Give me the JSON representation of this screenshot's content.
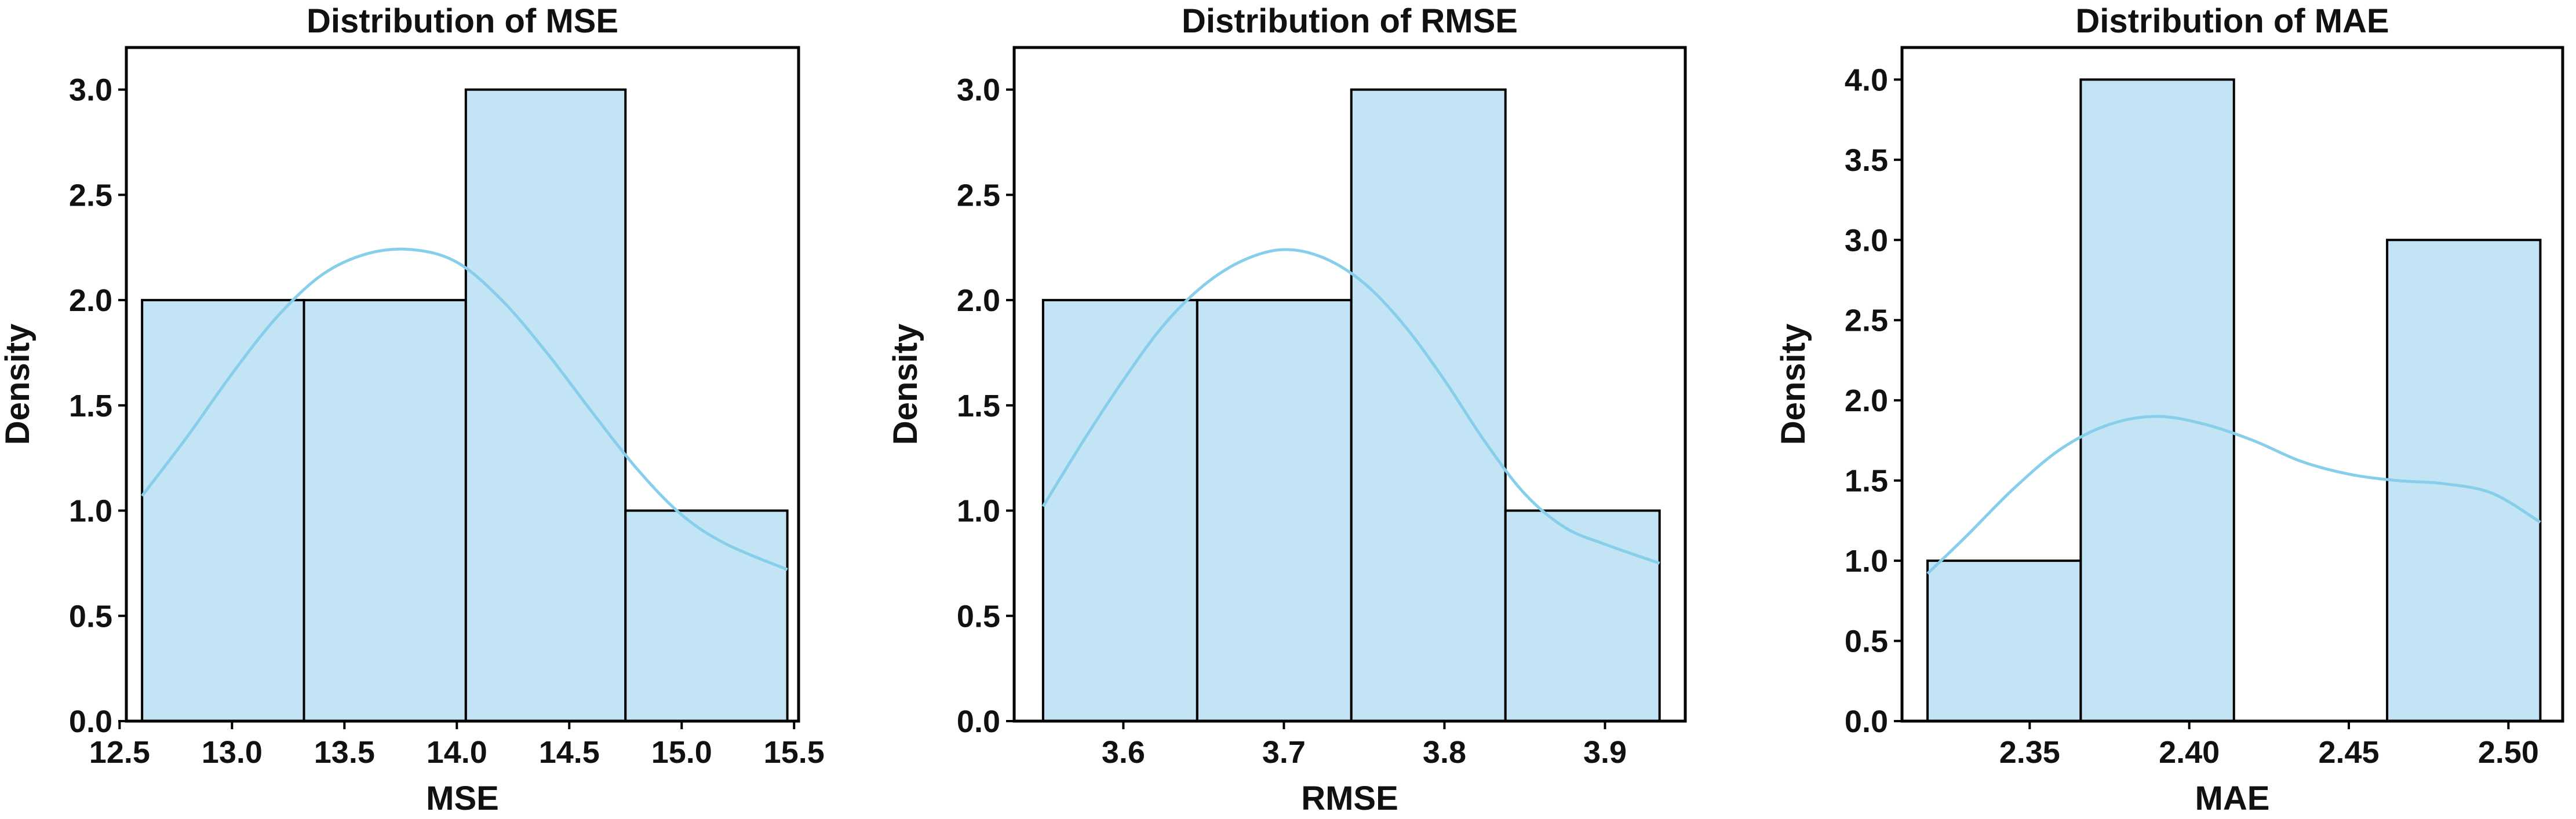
{
  "chart_data": [
    {
      "type": "histogram",
      "title": "Distribution of MSE",
      "xlabel": "MSE",
      "ylabel": "Density",
      "xlim": [
        12.53,
        15.52
      ],
      "ylim": [
        0,
        3.2
      ],
      "xticks": [
        "12.5",
        "13.0",
        "13.5",
        "14.0",
        "14.5",
        "15.0",
        "15.5"
      ],
      "xtick_values": [
        12.5,
        13.0,
        13.5,
        14.0,
        14.5,
        15.0,
        15.5
      ],
      "yticks": [
        "0.0",
        "0.5",
        "1.0",
        "1.5",
        "2.0",
        "2.5",
        "3.0"
      ],
      "ytick_values": [
        0,
        0.5,
        1.0,
        1.5,
        2.0,
        2.5,
        3.0
      ],
      "bins": [
        12.6,
        13.32,
        14.04,
        14.75,
        15.47
      ],
      "values": [
        2,
        2,
        3,
        1
      ],
      "kde": {
        "x": [
          12.6,
          12.8,
          13.0,
          13.2,
          13.4,
          13.6,
          13.8,
          14.0,
          14.2,
          14.4,
          14.6,
          14.8,
          15.0,
          15.2,
          15.47
        ],
        "y": [
          1.07,
          1.35,
          1.65,
          1.92,
          2.12,
          2.22,
          2.24,
          2.18,
          2.0,
          1.75,
          1.47,
          1.2,
          0.98,
          0.84,
          0.72
        ]
      }
    },
    {
      "type": "histogram",
      "title": "Distribution of RMSE",
      "xlabel": "RMSE",
      "ylabel": "Density",
      "xlim": [
        3.532,
        3.95
      ],
      "ylim": [
        0,
        3.2
      ],
      "xticks": [
        "3.6",
        "3.7",
        "3.8",
        "3.9"
      ],
      "xtick_values": [
        3.6,
        3.7,
        3.8,
        3.9
      ],
      "yticks": [
        "0.0",
        "0.5",
        "1.0",
        "1.5",
        "2.0",
        "2.5",
        "3.0"
      ],
      "ytick_values": [
        0,
        0.5,
        1.0,
        1.5,
        2.0,
        2.5,
        3.0
      ],
      "bins": [
        3.55,
        3.646,
        3.742,
        3.838,
        3.934
      ],
      "values": [
        2,
        2,
        3,
        1
      ],
      "kde": {
        "x": [
          3.55,
          3.575,
          3.6,
          3.625,
          3.65,
          3.675,
          3.7,
          3.725,
          3.75,
          3.775,
          3.8,
          3.825,
          3.85,
          3.875,
          3.9,
          3.934
        ],
        "y": [
          1.02,
          1.33,
          1.62,
          1.88,
          2.07,
          2.19,
          2.24,
          2.2,
          2.08,
          1.88,
          1.62,
          1.33,
          1.08,
          0.92,
          0.84,
          0.75
        ]
      }
    },
    {
      "type": "histogram",
      "title": "Distribution of MAE",
      "xlabel": "MAE",
      "ylabel": "Density",
      "xlim": [
        2.31,
        2.517
      ],
      "ylim": [
        0,
        4.2
      ],
      "xticks": [
        "2.35",
        "2.40",
        "2.45",
        "2.50"
      ],
      "xtick_values": [
        2.35,
        2.4,
        2.45,
        2.5
      ],
      "yticks": [
        "0.0",
        "0.5",
        "1.0",
        "1.5",
        "2.0",
        "2.5",
        "3.0",
        "3.5",
        "4.0"
      ],
      "ytick_values": [
        0,
        0.5,
        1.0,
        1.5,
        2.0,
        2.5,
        3.0,
        3.5,
        4.0
      ],
      "bins": [
        2.318,
        2.366,
        2.414,
        2.462,
        2.51
      ],
      "values": [
        1,
        4,
        0,
        3
      ],
      "kde": {
        "x": [
          2.318,
          2.33,
          2.345,
          2.36,
          2.375,
          2.39,
          2.405,
          2.42,
          2.435,
          2.45,
          2.465,
          2.48,
          2.495,
          2.51
        ],
        "y": [
          0.92,
          1.15,
          1.45,
          1.7,
          1.85,
          1.9,
          1.85,
          1.75,
          1.62,
          1.54,
          1.5,
          1.48,
          1.42,
          1.24
        ]
      }
    }
  ]
}
